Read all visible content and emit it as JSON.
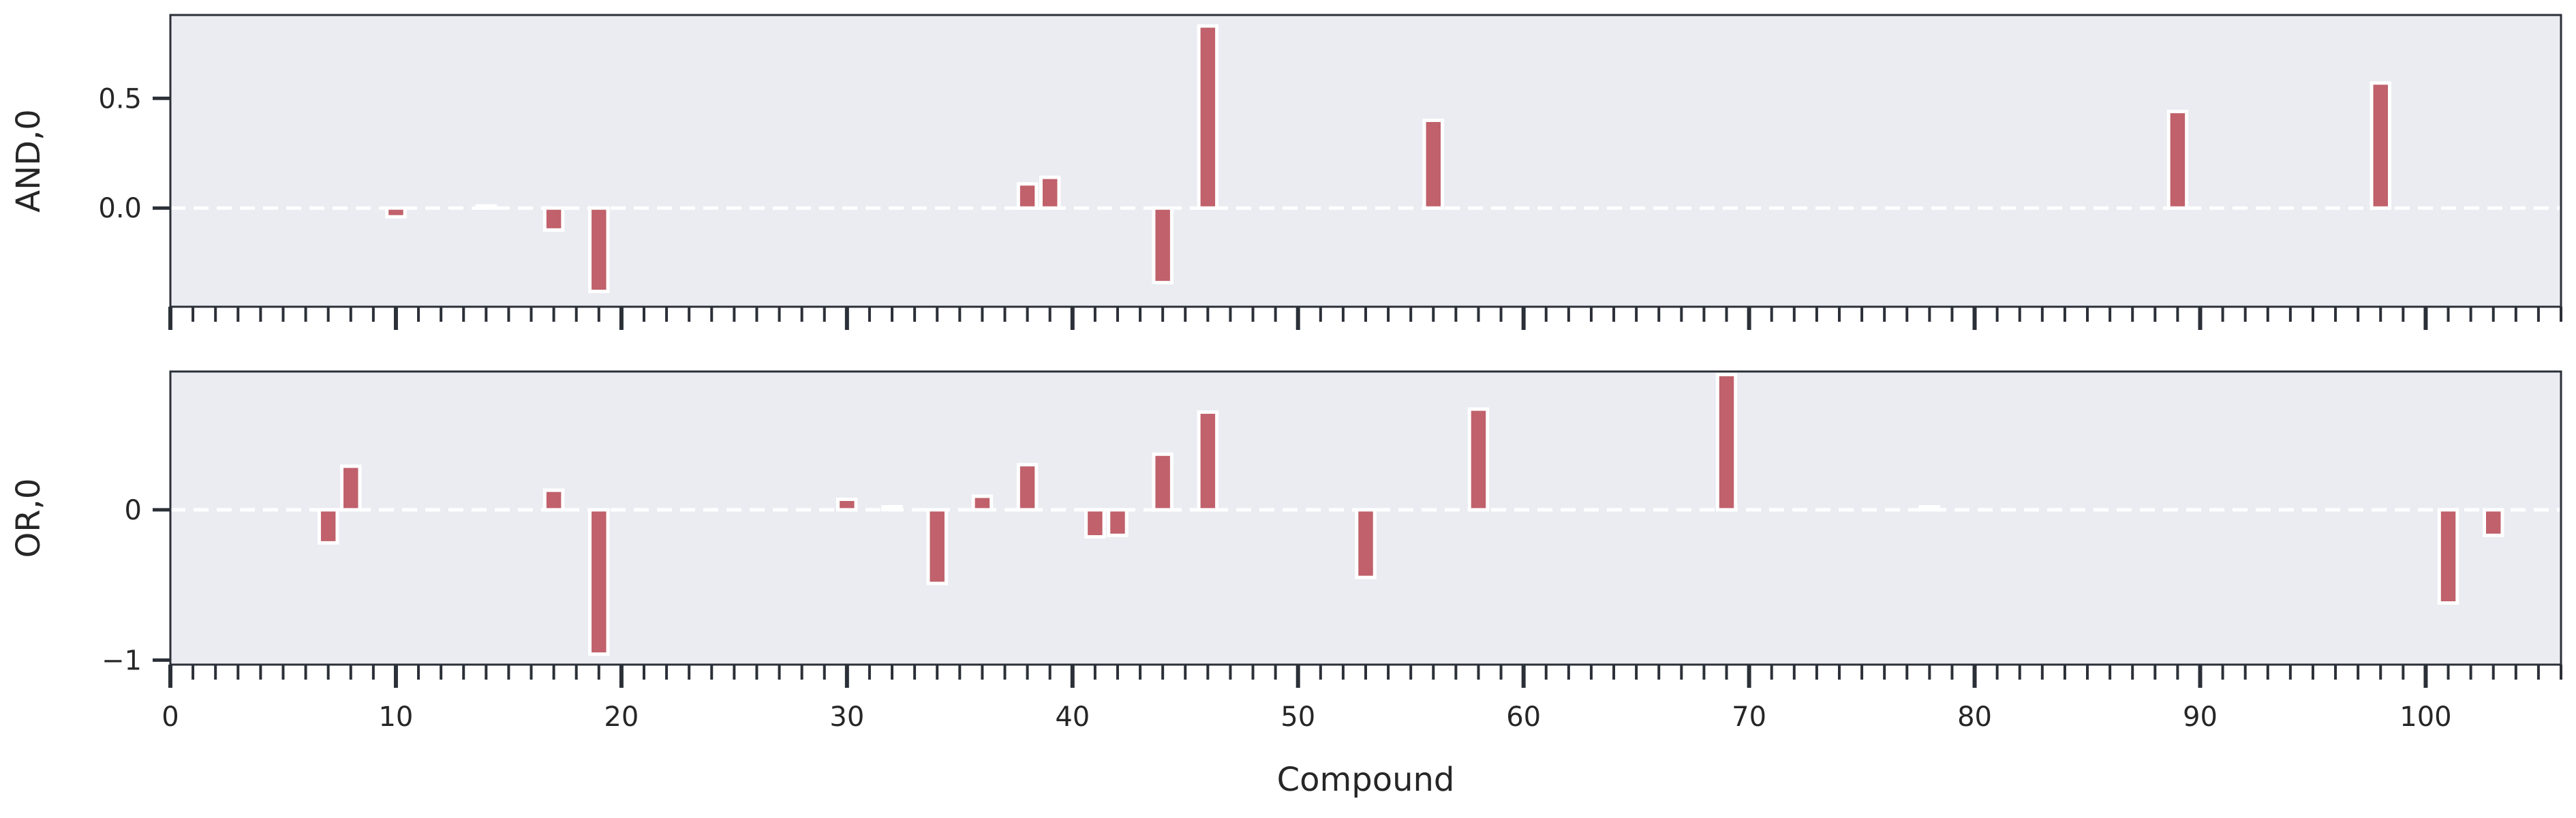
{
  "chart_data": [
    {
      "type": "bar",
      "ylabel": "AND,0",
      "xlabel": "",
      "xlim": [
        0,
        106
      ],
      "ylim": [
        -0.45,
        0.88
      ],
      "yticks": [
        0.0,
        0.5
      ],
      "ytick_labels": [
        "0.0",
        "0.5"
      ],
      "xticks_major": [
        0,
        10,
        20,
        30,
        40,
        50,
        60,
        70,
        80,
        90,
        100
      ],
      "xtick_labels_shown": false,
      "grid": false,
      "zero_line": true,
      "bar_color": "#c0616b",
      "bars": [
        {
          "x": 10,
          "value": -0.04
        },
        {
          "x": 14,
          "value": 0.01
        },
        {
          "x": 17,
          "value": -0.1
        },
        {
          "x": 19,
          "value": -0.38
        },
        {
          "x": 38,
          "value": 0.11
        },
        {
          "x": 39,
          "value": 0.14
        },
        {
          "x": 44,
          "value": -0.34
        },
        {
          "x": 46,
          "value": 0.83
        },
        {
          "x": 56,
          "value": 0.4
        },
        {
          "x": 89,
          "value": 0.44
        },
        {
          "x": 98,
          "value": 0.57
        }
      ]
    },
    {
      "type": "bar",
      "ylabel": "OR,0",
      "xlabel": "Compound",
      "xlim": [
        0,
        106
      ],
      "ylim": [
        -1.03,
        0.92
      ],
      "yticks": [
        -1,
        0
      ],
      "ytick_labels": [
        "−1",
        "0"
      ],
      "xticks_major": [
        0,
        10,
        20,
        30,
        40,
        50,
        60,
        70,
        80,
        90,
        100
      ],
      "xtick_labels": [
        "0",
        "10",
        "20",
        "30",
        "40",
        "50",
        "60",
        "70",
        "80",
        "90",
        "100"
      ],
      "xtick_labels_shown": true,
      "grid": false,
      "zero_line": true,
      "bar_color": "#c0616b",
      "bars": [
        {
          "x": 7,
          "value": -0.22
        },
        {
          "x": 8,
          "value": 0.29
        },
        {
          "x": 17,
          "value": 0.13
        },
        {
          "x": 19,
          "value": -0.96
        },
        {
          "x": 30,
          "value": 0.07
        },
        {
          "x": 32,
          "value": 0.02
        },
        {
          "x": 34,
          "value": -0.49
        },
        {
          "x": 36,
          "value": 0.09
        },
        {
          "x": 38,
          "value": 0.3
        },
        {
          "x": 41,
          "value": -0.18
        },
        {
          "x": 42,
          "value": -0.17
        },
        {
          "x": 44,
          "value": 0.37
        },
        {
          "x": 46,
          "value": 0.65
        },
        {
          "x": 53,
          "value": -0.45
        },
        {
          "x": 58,
          "value": 0.67
        },
        {
          "x": 69,
          "value": 0.9
        },
        {
          "x": 78,
          "value": 0.02
        },
        {
          "x": 101,
          "value": -0.62
        },
        {
          "x": 103,
          "value": -0.17
        }
      ]
    }
  ],
  "colors": {
    "plot_background": "#eaecf2",
    "axis_spine": "#2b3038",
    "bar_fill": "#c0616b",
    "bar_edge": "#ffffff",
    "zero_line": "#ffffff"
  }
}
